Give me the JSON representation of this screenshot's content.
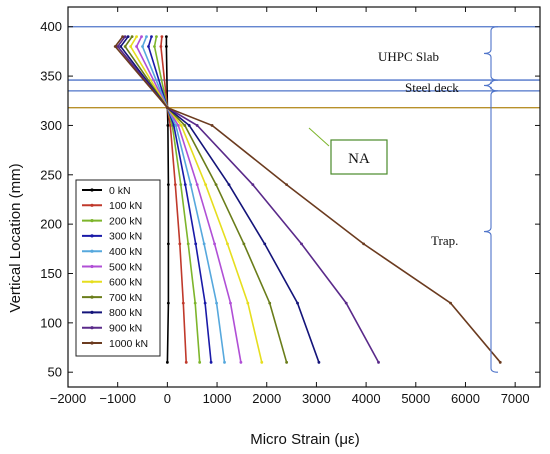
{
  "chart_data": {
    "type": "line",
    "xlabel": "Micro Strain (με)",
    "ylabel": "Vertical Location (mm)",
    "xlim": [
      -2000,
      7500
    ],
    "ylim": [
      35,
      420
    ],
    "xticks": [
      -2000,
      -1000,
      0,
      1000,
      2000,
      3000,
      4000,
      5000,
      6000,
      7000
    ],
    "yticks": [
      50,
      100,
      150,
      200,
      250,
      300,
      350,
      400
    ],
    "grid": false,
    "legend_position": "lower-left",
    "series": [
      {
        "name": "0 kN",
        "color": "#000000",
        "points": [
          [
            0,
            60
          ],
          [
            20,
            120
          ],
          [
            20,
            180
          ],
          [
            20,
            240
          ],
          [
            10,
            300
          ],
          [
            0,
            318
          ],
          [
            -20,
            380
          ],
          [
            -20,
            390
          ]
        ]
      },
      {
        "name": "100 kN",
        "color": "#c0392b",
        "points": [
          [
            380,
            60
          ],
          [
            320,
            120
          ],
          [
            250,
            180
          ],
          [
            160,
            240
          ],
          [
            60,
            300
          ],
          [
            0,
            318
          ],
          [
            -130,
            380
          ],
          [
            -110,
            390
          ]
        ]
      },
      {
        "name": "200 kN",
        "color": "#7db52b",
        "points": [
          [
            650,
            60
          ],
          [
            560,
            120
          ],
          [
            420,
            180
          ],
          [
            270,
            240
          ],
          [
            100,
            300
          ],
          [
            0,
            318
          ],
          [
            -260,
            380
          ],
          [
            -220,
            390
          ]
        ]
      },
      {
        "name": "300 kN",
        "color": "#1a1aa8",
        "points": [
          [
            880,
            60
          ],
          [
            760,
            120
          ],
          [
            570,
            180
          ],
          [
            360,
            240
          ],
          [
            130,
            300
          ],
          [
            0,
            318
          ],
          [
            -380,
            380
          ],
          [
            -320,
            390
          ]
        ]
      },
      {
        "name": "400 kN",
        "color": "#56a8dd",
        "points": [
          [
            1150,
            60
          ],
          [
            990,
            120
          ],
          [
            740,
            180
          ],
          [
            470,
            240
          ],
          [
            170,
            300
          ],
          [
            0,
            318
          ],
          [
            -500,
            380
          ],
          [
            -420,
            390
          ]
        ]
      },
      {
        "name": "500 kN",
        "color": "#b04fd6",
        "points": [
          [
            1480,
            60
          ],
          [
            1270,
            120
          ],
          [
            950,
            180
          ],
          [
            600,
            240
          ],
          [
            220,
            300
          ],
          [
            0,
            318
          ],
          [
            -620,
            380
          ],
          [
            -520,
            390
          ]
        ]
      },
      {
        "name": "600 kN",
        "color": "#e6de1e",
        "points": [
          [
            1900,
            60
          ],
          [
            1620,
            120
          ],
          [
            1210,
            180
          ],
          [
            770,
            240
          ],
          [
            280,
            300
          ],
          [
            0,
            318
          ],
          [
            -740,
            380
          ],
          [
            -620,
            390
          ]
        ]
      },
      {
        "name": "700 kN",
        "color": "#6a7d1a",
        "points": [
          [
            2400,
            60
          ],
          [
            2060,
            120
          ],
          [
            1540,
            180
          ],
          [
            980,
            240
          ],
          [
            350,
            300
          ],
          [
            0,
            318
          ],
          [
            -850,
            380
          ],
          [
            -710,
            390
          ]
        ]
      },
      {
        "name": "800 kN",
        "color": "#14147a",
        "points": [
          [
            3050,
            60
          ],
          [
            2620,
            120
          ],
          [
            1960,
            180
          ],
          [
            1240,
            240
          ],
          [
            440,
            300
          ],
          [
            0,
            318
          ],
          [
            -940,
            380
          ],
          [
            -790,
            390
          ]
        ]
      },
      {
        "name": "900 kN",
        "color": "#5a2a8a",
        "points": [
          [
            4250,
            60
          ],
          [
            3600,
            120
          ],
          [
            2700,
            180
          ],
          [
            1720,
            240
          ],
          [
            600,
            300
          ],
          [
            0,
            318
          ],
          [
            -1000,
            380
          ],
          [
            -850,
            390
          ]
        ]
      },
      {
        "name": "1000 kN",
        "color": "#6b3b1f",
        "points": [
          [
            6700,
            60
          ],
          [
            5700,
            120
          ],
          [
            3950,
            180
          ],
          [
            2400,
            240
          ],
          [
            900,
            300
          ],
          [
            0,
            318
          ],
          [
            -1050,
            380
          ],
          [
            -900,
            390
          ]
        ]
      }
    ],
    "horizontal_lines": [
      {
        "y": 400,
        "color": "#4f74c9"
      },
      {
        "y": 346,
        "color": "#4f74c9"
      },
      {
        "y": 335,
        "color": "#4f74c9"
      },
      {
        "y": 318,
        "color": "#b8902a"
      }
    ],
    "annotations": {
      "uhpc_slab": "UHPC Slab",
      "steel_deck": "Steel deck",
      "na": "NA",
      "trap": "Trap."
    }
  }
}
